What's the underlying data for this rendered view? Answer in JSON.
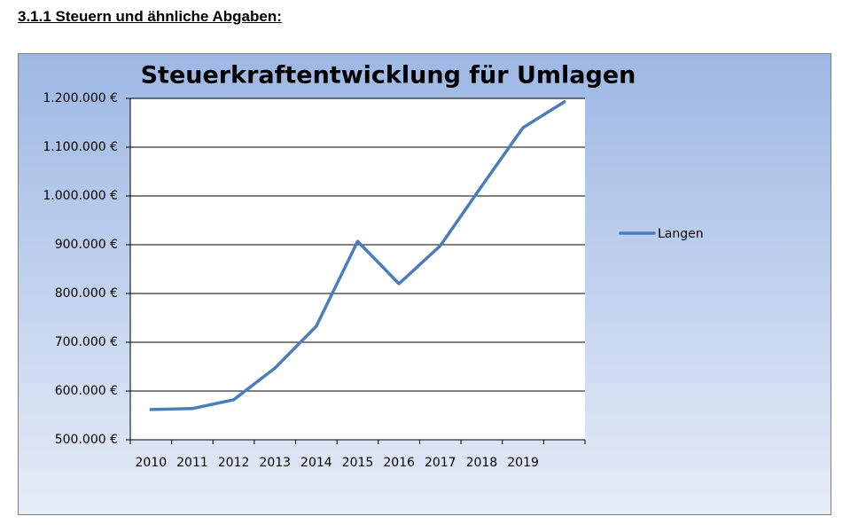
{
  "heading": "3.1.1 Steuern und ähnliche Abgaben:",
  "chart_data": {
    "type": "line",
    "title": "Steuerkraftentwicklung für Umlagen",
    "categories": [
      "2010",
      "2011",
      "2012",
      "2013",
      "2014",
      "2015",
      "2016",
      "2017",
      "2018",
      "2019",
      null
    ],
    "series": [
      {
        "name": "Langen",
        "color": "#4a7ebb",
        "values": [
          562000,
          564000,
          582000,
          647000,
          733000,
          907000,
          820000,
          898000,
          1020000,
          1140000,
          1193000
        ]
      }
    ],
    "ylim": [
      500000,
      1200000
    ],
    "yticks": [
      {
        "value": 500000,
        "label": "500.000 €"
      },
      {
        "value": 600000,
        "label": "600.000 €"
      },
      {
        "value": 700000,
        "label": "700.000 €"
      },
      {
        "value": 800000,
        "label": "800.000 €"
      },
      {
        "value": 900000,
        "label": "900.000 €"
      },
      {
        "value": 1000000,
        "label": "1.000.000 €"
      },
      {
        "value": 1100000,
        "label": "1.100.000 €"
      },
      {
        "value": 1200000,
        "label": "1.200.000 €"
      }
    ],
    "grid": true,
    "legend": "right"
  }
}
